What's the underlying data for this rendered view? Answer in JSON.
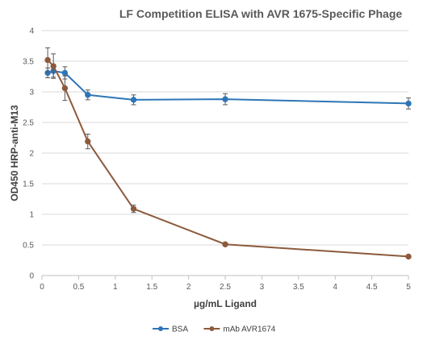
{
  "chart_data": {
    "type": "line",
    "title": "LF Competition ELISA with AVR 1675-Specific Phage",
    "xlabel": "µg/mL Ligand",
    "ylabel": "OD450 HRP-anti-M13",
    "xlim": [
      0,
      5
    ],
    "ylim": [
      0,
      4
    ],
    "x_ticks": [
      0,
      0.5,
      1,
      1.5,
      2,
      2.5,
      3,
      3.5,
      4,
      4.5,
      5
    ],
    "x_tick_labels": [
      "0",
      "0.5",
      "1",
      "1.5",
      "2",
      "2.5",
      "3",
      "3.5",
      "4",
      "4.5",
      "5"
    ],
    "y_ticks": [
      0,
      0.5,
      1,
      1.5,
      2,
      2.5,
      3,
      3.5,
      4
    ],
    "y_tick_labels": [
      "0",
      "0.5",
      "1",
      "1.5",
      "2",
      "2.5",
      "3",
      "3.5",
      "4"
    ],
    "grid": "horizontal",
    "legend_position": "bottom",
    "series": [
      {
        "name": "BSA",
        "color": "#2e75b6",
        "x": [
          0.078,
          0.156,
          0.3125,
          0.625,
          1.25,
          2.5,
          5
        ],
        "y": [
          3.31,
          3.34,
          3.31,
          2.95,
          2.87,
          2.88,
          2.81
        ],
        "err": [
          0.08,
          0.1,
          0.1,
          0.08,
          0.08,
          0.09,
          0.09
        ]
      },
      {
        "name": "mAb AVR1674",
        "color": "#8c5a3c",
        "x": [
          0.078,
          0.156,
          0.3125,
          0.625,
          1.25,
          2.5,
          5
        ],
        "y": [
          3.52,
          3.42,
          3.06,
          2.19,
          1.09,
          0.51,
          0.31
        ],
        "err": [
          0.2,
          0.2,
          0.2,
          0.12,
          0.06,
          0.02,
          0.02
        ]
      }
    ]
  }
}
